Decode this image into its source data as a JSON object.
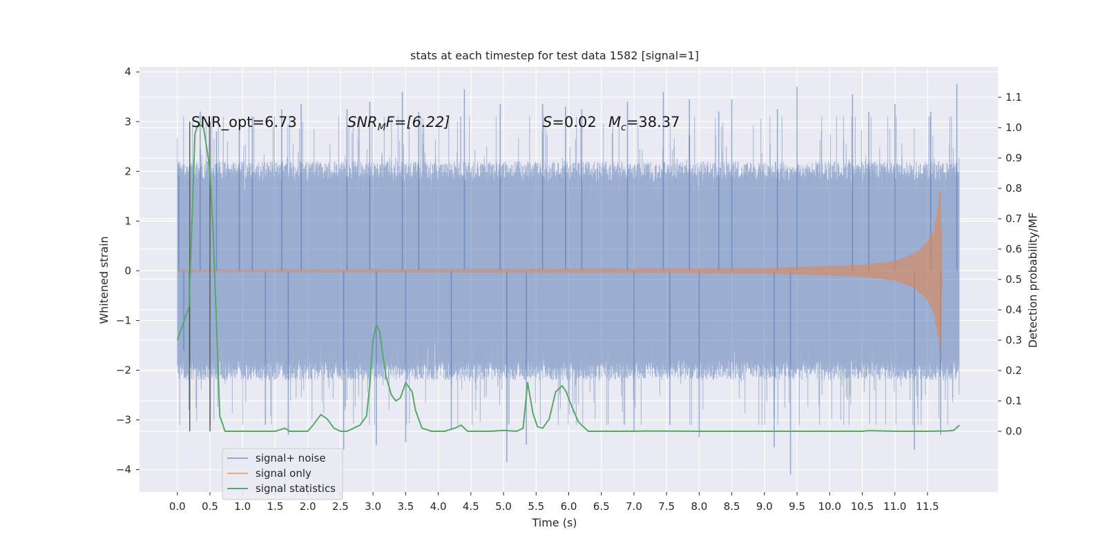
{
  "chart_data": {
    "type": "line",
    "title": "stats at each timestep for test data 1582 [signal=1]",
    "xlabel": "Time (s)",
    "ylabel_left": "Whitened strain",
    "ylabel_right": "Detection probability/MF",
    "xlim": [
      -0.58,
      12.58
    ],
    "ylim_left": [
      -4.45,
      4.1
    ],
    "ylim_right": [
      -0.2,
      1.2
    ],
    "x_ticks": [
      "0.0",
      "0.5",
      "1.0",
      "1.5",
      "2.0",
      "2.5",
      "3.0",
      "3.5",
      "4.0",
      "4.5",
      "5.0",
      "5.5",
      "6.0",
      "6.5",
      "7.0",
      "7.5",
      "8.0",
      "8.5",
      "9.0",
      "9.5",
      "10.0",
      "10.5",
      "11.0",
      "11.5"
    ],
    "y_left_ticks": [
      "4",
      "3",
      "2",
      "1",
      "0",
      "−1",
      "−2",
      "−3",
      "−4"
    ],
    "y_right_ticks": [
      "1.1",
      "1.0",
      "0.9",
      "0.8",
      "0.7",
      "0.6",
      "0.5",
      "0.4",
      "0.3",
      "0.2",
      "0.1",
      "0.0"
    ],
    "grid": true,
    "legend_placement": "lower-left",
    "colors": {
      "background": "#eaeaf2",
      "grid": "#ffffff",
      "noise": "#4c72b0",
      "signal": "#dd8452",
      "statistics": "#55a868",
      "vline": "#555555"
    },
    "annotations": {
      "snr_opt": "SNR_opt=6.73",
      "snr_mf_prefix": "SNR",
      "snr_mf_sub": "M",
      "snr_mf_rest": "F=[6.22]",
      "s_label": "S",
      "s_value": "=0.02",
      "mc_label": "M",
      "mc_sub": "c",
      "mc_value": "=38.37"
    },
    "vlines_x": [
      0.19,
      0.5
    ],
    "series": [
      {
        "name": "signal+ noise",
        "axis": "left",
        "kind": "noise_band",
        "x_range": [
          0.0,
          11.99
        ],
        "typical_envelope": 2.2,
        "extremes": [
          {
            "x": 0.02,
            "y": 2.18
          },
          {
            "x": 0.1,
            "y": -1.6
          },
          {
            "x": 0.18,
            "y": -2.8
          },
          {
            "x": 0.35,
            "y": 3.2
          },
          {
            "x": 0.6,
            "y": 2.8
          },
          {
            "x": 0.95,
            "y": 3.05
          },
          {
            "x": 1.15,
            "y": 3.1
          },
          {
            "x": 1.35,
            "y": -3.1
          },
          {
            "x": 1.6,
            "y": 3.25
          },
          {
            "x": 1.7,
            "y": -3.3
          },
          {
            "x": 1.9,
            "y": 3.35
          },
          {
            "x": 2.55,
            "y": -3.6
          },
          {
            "x": 2.6,
            "y": 3.25
          },
          {
            "x": 2.95,
            "y": 3.4
          },
          {
            "x": 3.05,
            "y": -3.5
          },
          {
            "x": 3.45,
            "y": 3.6
          },
          {
            "x": 3.5,
            "y": -3.45
          },
          {
            "x": 3.7,
            "y": 3.2
          },
          {
            "x": 4.2,
            "y": -3.2
          },
          {
            "x": 4.4,
            "y": 3.65
          },
          {
            "x": 4.95,
            "y": 3.35
          },
          {
            "x": 5.05,
            "y": -3.85
          },
          {
            "x": 5.35,
            "y": -3.5
          },
          {
            "x": 5.6,
            "y": 3.35
          },
          {
            "x": 5.95,
            "y": 3.3
          },
          {
            "x": 6.2,
            "y": 3.25
          },
          {
            "x": 6.9,
            "y": 3.4
          },
          {
            "x": 7.0,
            "y": -3.25
          },
          {
            "x": 7.45,
            "y": 3.6
          },
          {
            "x": 7.55,
            "y": -3.1
          },
          {
            "x": 7.85,
            "y": 3.45
          },
          {
            "x": 8.0,
            "y": -3.35
          },
          {
            "x": 8.3,
            "y": 3.2
          },
          {
            "x": 8.5,
            "y": 3.45
          },
          {
            "x": 9.15,
            "y": -3.55
          },
          {
            "x": 9.2,
            "y": 3.25
          },
          {
            "x": 9.4,
            "y": -4.1
          },
          {
            "x": 9.5,
            "y": 3.7
          },
          {
            "x": 10.35,
            "y": 3.55
          },
          {
            "x": 10.6,
            "y": 3.2
          },
          {
            "x": 11.0,
            "y": 3.35
          },
          {
            "x": 11.3,
            "y": -3.6
          },
          {
            "x": 11.55,
            "y": 3.2
          },
          {
            "x": 11.7,
            "y": -3.3
          },
          {
            "x": 11.95,
            "y": 3.75
          }
        ]
      },
      {
        "name": "signal only",
        "axis": "left",
        "kind": "chirp",
        "x_range": [
          0.0,
          11.72
        ],
        "envelope": [
          {
            "x": 0.0,
            "y": 0.02
          },
          {
            "x": 9.0,
            "y": 0.05
          },
          {
            "x": 10.5,
            "y": 0.12
          },
          {
            "x": 11.0,
            "y": 0.2
          },
          {
            "x": 11.3,
            "y": 0.35
          },
          {
            "x": 11.5,
            "y": 0.6
          },
          {
            "x": 11.6,
            "y": 0.9
          },
          {
            "x": 11.66,
            "y": 1.3
          },
          {
            "x": 11.7,
            "y": 1.8
          },
          {
            "x": 11.72,
            "y": 0.5
          }
        ]
      },
      {
        "name": "signal statistics",
        "axis": "right",
        "x": [
          0.0,
          0.18,
          0.27,
          0.3,
          0.35,
          0.4,
          0.44,
          0.5,
          0.55,
          0.6,
          0.65,
          0.7,
          0.73,
          0.77,
          0.8,
          1.0,
          1.5,
          1.65,
          1.72,
          1.8,
          2.0,
          2.08,
          2.2,
          2.3,
          2.4,
          2.5,
          2.6,
          2.8,
          2.9,
          2.95,
          3.0,
          3.05,
          3.1,
          3.15,
          3.2,
          3.28,
          3.35,
          3.42,
          3.5,
          3.6,
          3.65,
          3.75,
          3.9,
          4.1,
          4.25,
          4.35,
          4.45,
          4.6,
          4.8,
          5.0,
          5.2,
          5.3,
          5.37,
          5.45,
          5.52,
          5.6,
          5.7,
          5.8,
          5.9,
          5.96,
          6.05,
          6.15,
          6.3,
          6.6,
          7.0,
          7.2,
          8.0,
          9.0,
          10.0,
          10.5,
          10.6,
          11.0,
          11.5,
          11.8,
          11.9,
          11.99
        ],
        "y": [
          0.3,
          0.41,
          0.98,
          1.0,
          1.01,
          1.0,
          0.95,
          0.86,
          0.65,
          0.35,
          0.05,
          0.02,
          0.0,
          0.0,
          0.0,
          0.0,
          0.0,
          0.01,
          0.0,
          0.0,
          0.0,
          0.02,
          0.055,
          0.04,
          0.01,
          0.0,
          0.0,
          0.02,
          0.05,
          0.15,
          0.3,
          0.35,
          0.33,
          0.25,
          0.18,
          0.12,
          0.1,
          0.11,
          0.16,
          0.13,
          0.07,
          0.01,
          0.0,
          0.0,
          0.01,
          0.02,
          0.0,
          0.0,
          0.0,
          0.003,
          0.0,
          0.01,
          0.16,
          0.06,
          0.015,
          0.01,
          0.04,
          0.13,
          0.15,
          0.13,
          0.08,
          0.03,
          0.0,
          0.0,
          0.0,
          0.001,
          0.0,
          0.0,
          0.0,
          0.0,
          0.002,
          0.0,
          0.0,
          0.001,
          0.003,
          0.02
        ]
      }
    ]
  }
}
